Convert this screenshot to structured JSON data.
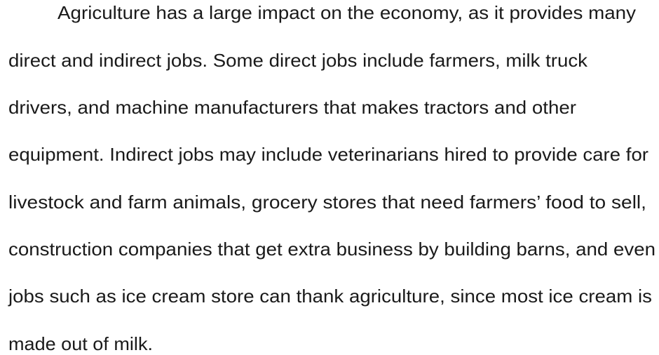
{
  "paragraph": {
    "lines": [
      "Agriculture has a large impact on the economy, as it provides many",
      "direct and indirect jobs. Some direct jobs include farmers, milk truck",
      "drivers, and machine manufacturers that makes tractors and other",
      "equipment. Indirect jobs may include veterinarians hired to provide care for",
      "livestock and farm animals, grocery stores that need farmers’ food to sell,",
      "construction companies that get extra business by building barns, and even",
      "jobs such as ice cream store can thank agriculture, since most ice cream is",
      "made out of milk."
    ]
  }
}
